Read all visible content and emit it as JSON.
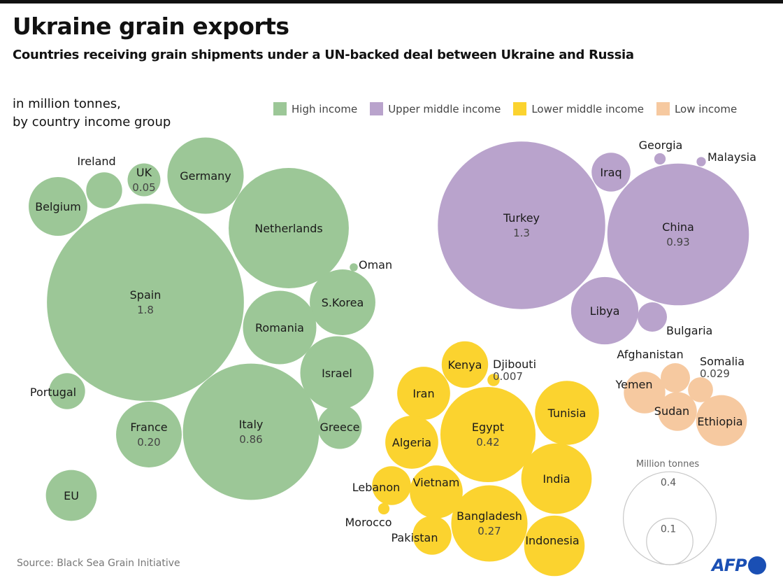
{
  "header": {
    "title": "Ukraine grain exports",
    "subtitle": "Countries receiving grain shipments under a UN-backed deal between Ukraine and Russia",
    "unit_line1": "in million tonnes,",
    "unit_line2": "by country income group"
  },
  "footer": {
    "source": "Source: Black Sea Grain Initiative",
    "logo": "AFP"
  },
  "chart_data": {
    "type": "bubble",
    "unit": "million tonnes",
    "legend": [
      {
        "group": "high",
        "label": "High income",
        "color": "#9cc797"
      },
      {
        "group": "upper_middle",
        "label": "Upper middle income",
        "color": "#b9a3cc"
      },
      {
        "group": "lower_middle",
        "label": "Lower middle income",
        "color": "#fbd32f"
      },
      {
        "group": "low",
        "label": "Low income",
        "color": "#f6c9a0"
      }
    ],
    "size_legend": {
      "title": "Million tonnes",
      "values": [
        0.4,
        0.1
      ],
      "labels": [
        "0.4",
        "0.1"
      ]
    },
    "bubbles": [
      {
        "name": "Spain",
        "group": "high",
        "value": 1.8,
        "value_label": "1.8"
      },
      {
        "name": "Belgium",
        "group": "high",
        "value": 0.16
      },
      {
        "name": "Ireland",
        "group": "high",
        "value": 0.06
      },
      {
        "name": "UK",
        "group": "high",
        "value": 0.05,
        "value_label": "0.05"
      },
      {
        "name": "Germany",
        "group": "high",
        "value": 0.27
      },
      {
        "name": "Netherlands",
        "group": "high",
        "value": 0.67
      },
      {
        "name": "Oman",
        "group": "high",
        "value": 0.003
      },
      {
        "name": "S.Korea",
        "group": "high",
        "value": 0.2
      },
      {
        "name": "Romania",
        "group": "high",
        "value": 0.25
      },
      {
        "name": "Israel",
        "group": "high",
        "value": 0.25
      },
      {
        "name": "Portugal",
        "group": "high",
        "value": 0.06
      },
      {
        "name": "France",
        "group": "high",
        "value": 0.2,
        "value_label": "0.20"
      },
      {
        "name": "Italy",
        "group": "high",
        "value": 0.86,
        "value_label": "0.86"
      },
      {
        "name": "Greece",
        "group": "high",
        "value": 0.09
      },
      {
        "name": "EU",
        "group": "high",
        "value": 0.12
      },
      {
        "name": "Turkey",
        "group": "upper_middle",
        "value": 1.3,
        "value_label": "1.3"
      },
      {
        "name": "Iraq",
        "group": "upper_middle",
        "value": 0.07
      },
      {
        "name": "Georgia",
        "group": "upper_middle",
        "value": 0.006
      },
      {
        "name": "Malaysia",
        "group": "upper_middle",
        "value": 0.004
      },
      {
        "name": "China",
        "group": "upper_middle",
        "value": 0.93,
        "value_label": "0.93"
      },
      {
        "name": "Libya",
        "group": "upper_middle",
        "value": 0.21
      },
      {
        "name": "Bulgaria",
        "group": "upper_middle",
        "value": 0.04
      },
      {
        "name": "Kenya",
        "group": "lower_middle",
        "value": 0.1
      },
      {
        "name": "Djibouti",
        "group": "lower_middle",
        "value": 0.007,
        "value_label": "0.007"
      },
      {
        "name": "Iran",
        "group": "lower_middle",
        "value": 0.13
      },
      {
        "name": "Egypt",
        "group": "lower_middle",
        "value": 0.42,
        "value_label": "0.42"
      },
      {
        "name": "Tunisia",
        "group": "lower_middle",
        "value": 0.19
      },
      {
        "name": "Algeria",
        "group": "lower_middle",
        "value": 0.13
      },
      {
        "name": "India",
        "group": "lower_middle",
        "value": 0.23
      },
      {
        "name": "Lebanon",
        "group": "lower_middle",
        "value": 0.07
      },
      {
        "name": "Morocco",
        "group": "lower_middle",
        "value": 0.006
      },
      {
        "name": "Vietnam",
        "group": "lower_middle",
        "value": 0.13
      },
      {
        "name": "Bangladesh",
        "group": "lower_middle",
        "value": 0.27,
        "value_label": "0.27"
      },
      {
        "name": "Pakistan",
        "group": "lower_middle",
        "value": 0.07
      },
      {
        "name": "Indonesia",
        "group": "lower_middle",
        "value": 0.17
      },
      {
        "name": "Afghanistan",
        "group": "low",
        "value": 0.04
      },
      {
        "name": "Somalia",
        "group": "low",
        "value": 0.029,
        "value_label": "0.029"
      },
      {
        "name": "Yemen",
        "group": "low",
        "value": 0.08
      },
      {
        "name": "Sudan",
        "group": "low",
        "value": 0.07
      },
      {
        "name": "Ethiopia",
        "group": "low",
        "value": 0.12
      }
    ]
  }
}
